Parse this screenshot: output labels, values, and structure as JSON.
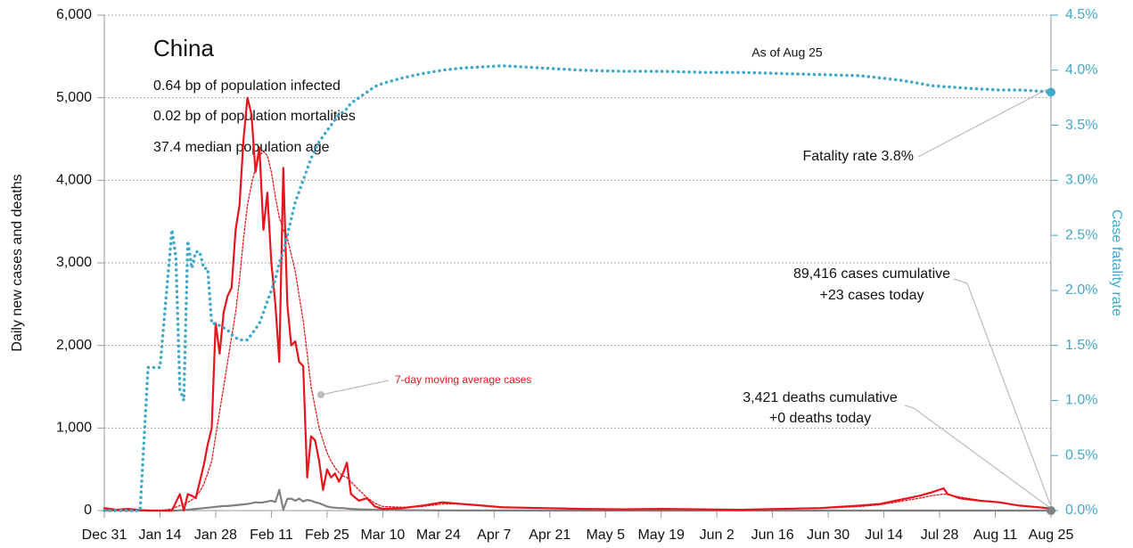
{
  "chart_data": {
    "type": "line",
    "title": "China",
    "notes": [
      "0.64 bp of population infected",
      "0.02 bp of population mortalities",
      "37.4 median population age"
    ],
    "annotations": [
      "As of Aug 25",
      "Fatality rate 3.8%",
      "89,416 cases cumulative",
      "+23 cases today",
      "3,421 deaths cumulative",
      "+0 deaths today",
      "7-day moving average cases"
    ],
    "ylabel": "Daily new cases and deaths",
    "y2label": "Case fatality rate",
    "grid": true,
    "xlim": [
      0,
      238
    ],
    "xticks": [
      {
        "value": 0,
        "label": "Dec 31"
      },
      {
        "value": 14,
        "label": "Jan 14"
      },
      {
        "value": 28,
        "label": "Jan 28"
      },
      {
        "value": 42,
        "label": "Feb 11"
      },
      {
        "value": 56,
        "label": "Feb 25"
      },
      {
        "value": 70,
        "label": "Mar 10"
      },
      {
        "value": 84,
        "label": "Mar 24"
      },
      {
        "value": 98,
        "label": "Apr 7"
      },
      {
        "value": 112,
        "label": "Apr 21"
      },
      {
        "value": 126,
        "label": "May 5"
      },
      {
        "value": 140,
        "label": "May 19"
      },
      {
        "value": 154,
        "label": "Jun 2"
      },
      {
        "value": 168,
        "label": "Jun 16"
      },
      {
        "value": 182,
        "label": "Jun 30"
      },
      {
        "value": 196,
        "label": "Jul 14"
      },
      {
        "value": 210,
        "label": "Jul 28"
      },
      {
        "value": 224,
        "label": "Aug 11"
      },
      {
        "value": 238,
        "label": "Aug 25"
      }
    ],
    "ylim": [
      0,
      6000
    ],
    "yticks": [
      0,
      {
        "value": 1000,
        "label": "1,000"
      },
      {
        "value": 2000,
        "label": "2,000"
      },
      {
        "value": 3000,
        "label": "3,000"
      },
      {
        "value": 4000,
        "label": "4,000"
      },
      {
        "value": 5000,
        "label": "5,000"
      },
      {
        "value": 6000,
        "label": "6,000"
      }
    ],
    "y2lim": [
      0,
      4.5
    ],
    "y2ticks": [
      {
        "value": 0,
        "label": "0.0%"
      },
      {
        "value": 0.5,
        "label": "0.5%"
      },
      {
        "value": 1,
        "label": "1.0%"
      },
      {
        "value": 1.5,
        "label": "1.5%"
      },
      {
        "value": 2,
        "label": "2.0%"
      },
      {
        "value": 2.5,
        "label": "2.5%"
      },
      {
        "value": 3,
        "label": "3.0%"
      },
      {
        "value": 3.5,
        "label": "3.5%"
      },
      {
        "value": 4,
        "label": "4.0%"
      },
      {
        "value": 4.5,
        "label": "4.5%"
      }
    ],
    "x": [
      0,
      3,
      6,
      9,
      11,
      14,
      17,
      18,
      19,
      20,
      21,
      22,
      23,
      24,
      25,
      26,
      27,
      28,
      29,
      30,
      31,
      32,
      33,
      34,
      35,
      36,
      37,
      38,
      39,
      40,
      41,
      42,
      43,
      44,
      45,
      46,
      47,
      48,
      49,
      50,
      51,
      52,
      53,
      54,
      55,
      56,
      57,
      58,
      59,
      60,
      61,
      62,
      64,
      66,
      68,
      70,
      75,
      80,
      85,
      90,
      95,
      100,
      110,
      120,
      130,
      140,
      150,
      160,
      170,
      180,
      190,
      195,
      200,
      205,
      208,
      211,
      212,
      215,
      220,
      225,
      230,
      235,
      238
    ],
    "series": [
      {
        "name": "Daily new cases",
        "color": "#e8141b",
        "style": "solid",
        "axis": "y",
        "values": [
          30,
          10,
          20,
          5,
          0,
          0,
          0,
          100,
          200,
          0,
          200,
          180,
          150,
          350,
          550,
          800,
          1000,
          2270,
          1900,
          2400,
          2600,
          2700,
          3400,
          3700,
          4500,
          5000,
          4800,
          4100,
          4400,
          3400,
          3850,
          3000,
          2500,
          1800,
          4150,
          2500,
          2000,
          2050,
          1800,
          1750,
          400,
          900,
          850,
          600,
          250,
          500,
          400,
          450,
          350,
          450,
          580,
          200,
          120,
          150,
          50,
          20,
          30,
          60,
          100,
          80,
          60,
          40,
          30,
          20,
          15,
          20,
          15,
          10,
          20,
          30,
          60,
          80,
          130,
          180,
          220,
          270,
          200,
          150,
          120,
          100,
          60,
          40,
          23
        ]
      },
      {
        "name": "7-day moving average cases",
        "color": "#e8141b",
        "style": "dotted",
        "axis": "y",
        "values": [
          20,
          15,
          12,
          10,
          5,
          0,
          20,
          40,
          60,
          80,
          100,
          130,
          170,
          230,
          320,
          450,
          600,
          900,
          1200,
          1500,
          1800,
          2100,
          2400,
          2800,
          3300,
          3700,
          3950,
          4150,
          4300,
          4350,
          4300,
          4100,
          3800,
          3550,
          3400,
          3300,
          3100,
          2900,
          2600,
          2300,
          1900,
          1500,
          1250,
          1000,
          850,
          700,
          600,
          520,
          460,
          420,
          400,
          350,
          250,
          160,
          90,
          50,
          40,
          50,
          80,
          80,
          60,
          45,
          30,
          22,
          16,
          18,
          15,
          12,
          18,
          28,
          50,
          70,
          110,
          150,
          180,
          200,
          195,
          165,
          125,
          95,
          65,
          42,
          30
        ]
      },
      {
        "name": "Daily new deaths",
        "color": "#808080",
        "style": "solid",
        "axis": "y",
        "values": [
          0,
          0,
          0,
          0,
          0,
          0,
          0,
          0,
          3,
          5,
          10,
          15,
          20,
          25,
          30,
          35,
          40,
          45,
          50,
          55,
          55,
          60,
          65,
          70,
          75,
          80,
          90,
          100,
          95,
          100,
          110,
          120,
          105,
          250,
          10,
          140,
          145,
          120,
          145,
          110,
          130,
          120,
          100,
          90,
          70,
          50,
          40,
          35,
          30,
          30,
          25,
          20,
          15,
          12,
          10,
          8,
          5,
          3,
          2,
          1,
          1,
          1,
          0,
          0,
          0,
          0,
          0,
          0,
          0,
          0,
          0,
          0,
          0,
          0,
          0,
          0,
          0,
          0,
          0,
          0,
          0,
          0,
          0
        ]
      },
      {
        "name": "Case fatality rate",
        "color": "#41a9c9",
        "style": "dotted",
        "axis": "y2",
        "values": [
          0,
          0,
          0,
          0,
          1.3,
          1.3,
          2.55,
          2.3,
          1.1,
          1.0,
          2.45,
          2.2,
          2.35,
          2.35,
          2.2,
          2.2,
          1.7,
          1.7,
          1.68,
          1.66,
          1.64,
          1.6,
          1.57,
          1.55,
          1.55,
          1.55,
          1.6,
          1.65,
          1.7,
          1.8,
          1.9,
          2.0,
          2.1,
          2.25,
          2.35,
          2.5,
          2.65,
          2.8,
          2.9,
          3.0,
          3.1,
          3.2,
          3.28,
          3.35,
          3.4,
          3.45,
          3.5,
          3.55,
          3.6,
          3.62,
          3.65,
          3.7,
          3.75,
          3.8,
          3.85,
          3.88,
          3.93,
          3.97,
          4.0,
          4.02,
          4.03,
          4.04,
          4.02,
          4.0,
          3.99,
          3.99,
          3.98,
          3.98,
          3.97,
          3.96,
          3.95,
          3.93,
          3.91,
          3.88,
          3.86,
          3.85,
          3.85,
          3.84,
          3.83,
          3.82,
          3.82,
          3.81,
          3.8
        ]
      }
    ]
  }
}
